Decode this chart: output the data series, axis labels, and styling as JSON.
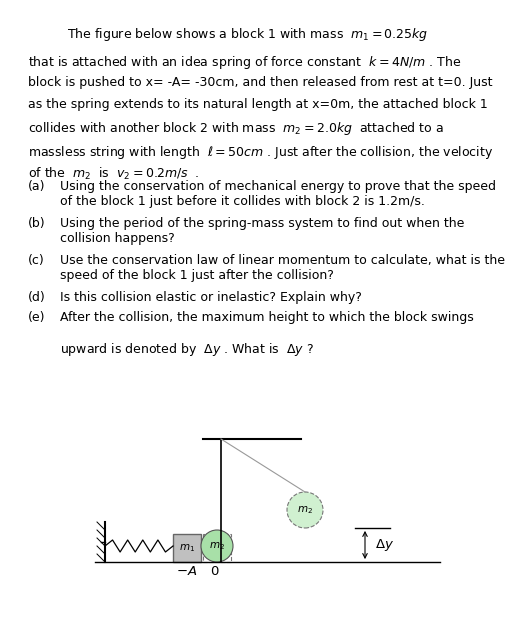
{
  "bg_color": "#ffffff",
  "text_color": "#000000",
  "title": "The figure below shows a block 1 with mass  $m_1 = 0.25kg$",
  "para_lines": [
    "that is attached with an idea spring of force constant  $k = 4N/m$ . The",
    "block is pushed to x= -A= -30cm, and then released from rest at t=0. Just",
    "as the spring extends to its natural length at x=0m, the attached block 1",
    "collides with another block 2 with mass  $m_2 = 2.0kg$  attached to a",
    "massless string with length  $\\ell = 50cm$ . Just after the collision, the velocity",
    "of the  $m_2$  is  $v_2 = 0.2m/s$  ."
  ],
  "q_labels": [
    "(a)",
    "(b)",
    "(c)",
    "(d)",
    "(e)"
  ],
  "q_texts": [
    "Using the conservation of mechanical energy to prove that the speed\nof the block 1 just before it collides with block 2 is 1.2m/s.",
    "Using the period of the spring-mass system to find out when the\ncollision happens?",
    "Use the conservation law of linear momentum to calculate, what is the\nspeed of the block 1 just after the collision?",
    "Is this collision elastic or inelastic? Explain why?",
    "After the collision, the maximum height to which the block swings\n\nupward is denoted by  $\\Delta y$ . What is  $\\Delta y$ ?"
  ],
  "fs_title": 9.0,
  "fs_para": 9.0,
  "fs_q": 9.0,
  "fs_diagram": 7.5
}
